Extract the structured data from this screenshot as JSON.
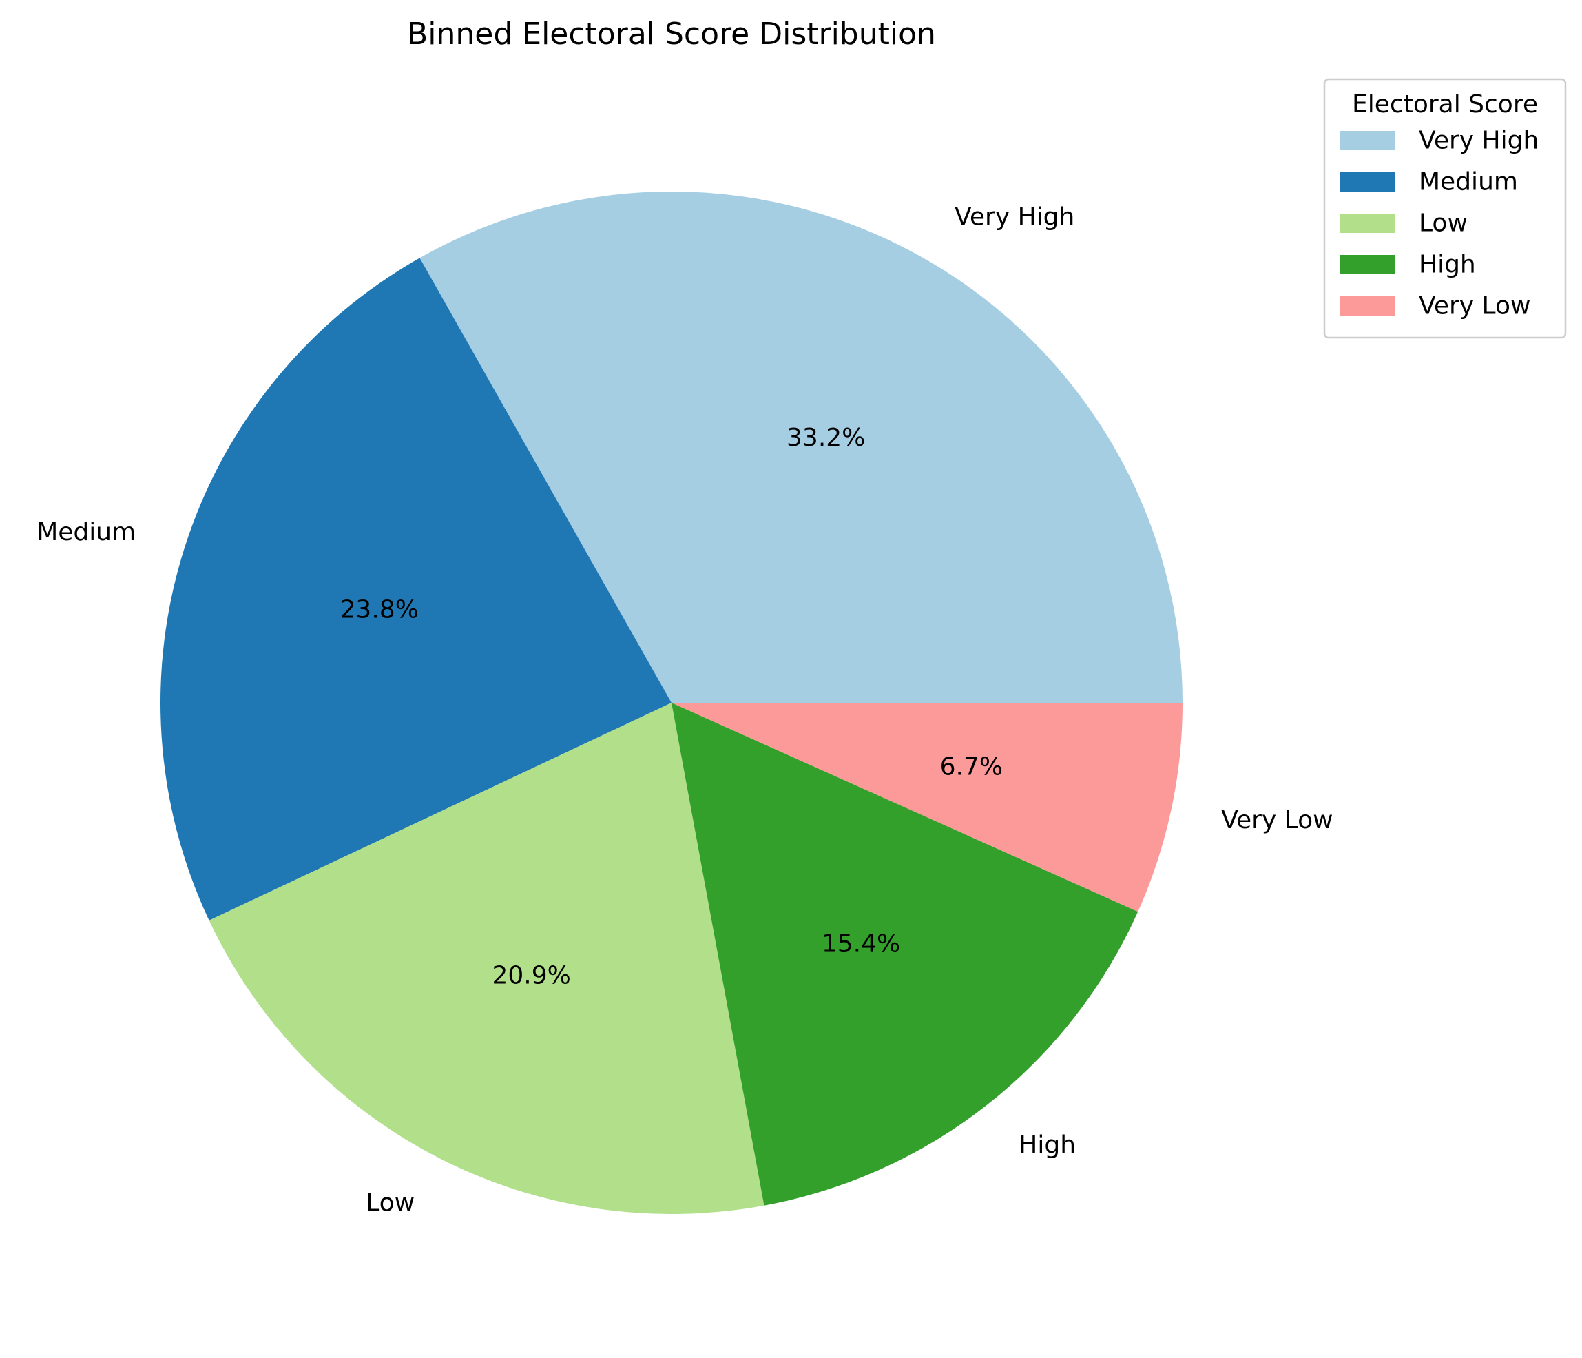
{
  "chart_data": {
    "type": "pie",
    "title": "Binned Electoral Score Distribution",
    "legend_title": "Electoral Score",
    "legend_position": "top-right",
    "start_angle_deg": 0,
    "direction": "counterclockwise",
    "slices": [
      {
        "label": "Very High",
        "value": 33.2,
        "pct_label": "33.2%",
        "color": "#a6cee3"
      },
      {
        "label": "Medium",
        "value": 23.8,
        "pct_label": "23.8%",
        "color": "#1f78b4"
      },
      {
        "label": "Low",
        "value": 20.9,
        "pct_label": "20.9%",
        "color": "#b2df8a"
      },
      {
        "label": "High",
        "value": 15.4,
        "pct_label": "15.4%",
        "color": "#33a02c"
      },
      {
        "label": "Very Low",
        "value": 6.7,
        "pct_label": "6.7%",
        "color": "#fb9a99"
      }
    ]
  }
}
